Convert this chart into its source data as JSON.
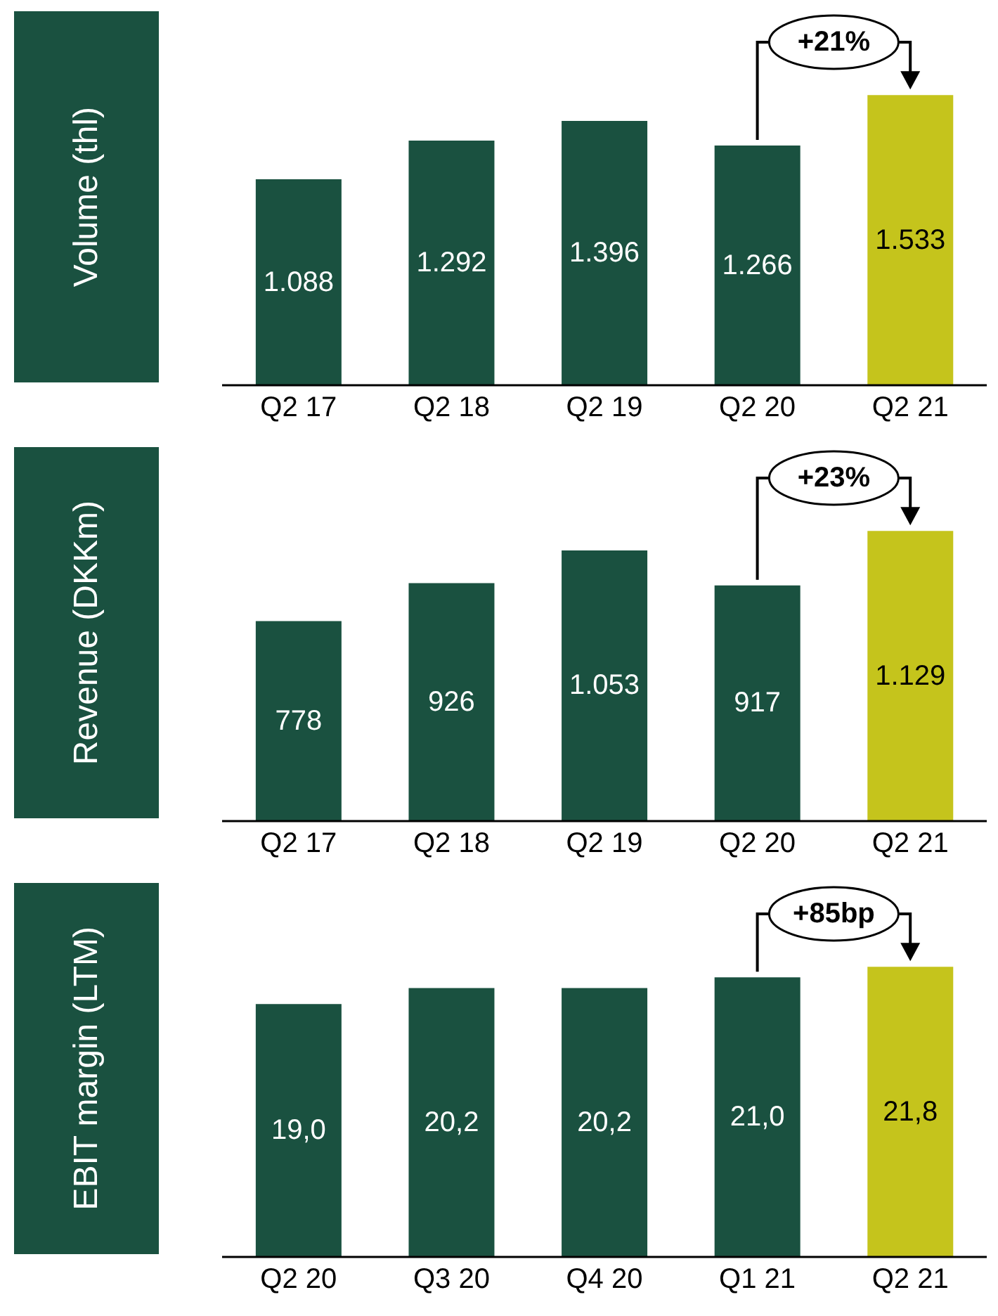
{
  "chart_data": [
    {
      "type": "bar",
      "ylabel": "Volume (thl)",
      "categories": [
        "Q2 17",
        "Q2 18",
        "Q2 19",
        "Q2 20",
        "Q2 21"
      ],
      "values": [
        1088,
        1292,
        1396,
        1266,
        1533
      ],
      "value_labels": [
        "1.088",
        "1.292",
        "1.396",
        "1.266",
        "1.533"
      ],
      "colors": [
        "#1a5140",
        "#1a5140",
        "#1a5140",
        "#1a5140",
        "#c5c41c"
      ],
      "annotations": [
        "+21%"
      ]
    },
    {
      "type": "bar",
      "ylabel": "Revenue (DKKm)",
      "categories": [
        "Q2 17",
        "Q2 18",
        "Q2 19",
        "Q2 20",
        "Q2 21"
      ],
      "values": [
        778,
        926,
        1053,
        917,
        1129
      ],
      "value_labels": [
        "778",
        "926",
        "1.053",
        "917",
        "1.129"
      ],
      "colors": [
        "#1a5140",
        "#1a5140",
        "#1a5140",
        "#1a5140",
        "#c5c41c"
      ],
      "annotations": [
        "+23%"
      ]
    },
    {
      "type": "bar",
      "ylabel": "EBIT margin (LTM)",
      "categories": [
        "Q2 20",
        "Q3 20",
        "Q4 20",
        "Q1 21",
        "Q2 21"
      ],
      "values": [
        19.0,
        20.2,
        20.2,
        21.0,
        21.8
      ],
      "value_labels": [
        "19,0",
        "20,2",
        "20,2",
        "21,0",
        "21,8"
      ],
      "colors": [
        "#1a5140",
        "#1a5140",
        "#1a5140",
        "#1a5140",
        "#c5c41c"
      ],
      "annotations": [
        "+85bp"
      ]
    }
  ]
}
